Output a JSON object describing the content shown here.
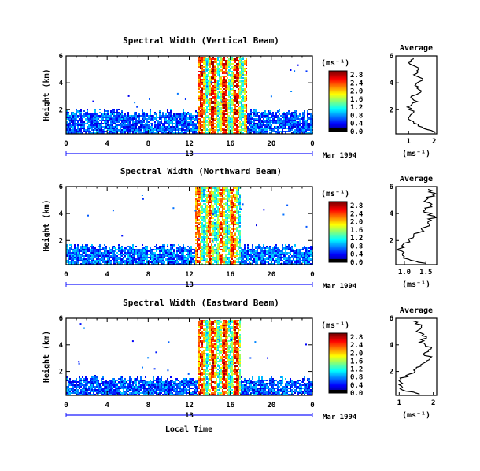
{
  "figure": {
    "xlabel": "Local Time",
    "colorbar_unit": "(ms⁻¹)",
    "date_label": "Mar 1994",
    "day_label": "13"
  },
  "chart_data": [
    {
      "type": "heatmap",
      "title": "Spectral Width (Vertical Beam)",
      "ylabel": "Height (km)",
      "x_ticks": [
        "0",
        "4",
        "8",
        "12",
        "16",
        "20",
        "0"
      ],
      "y_ticks": [
        "2",
        "4",
        "6"
      ],
      "xlim": [
        0,
        24
      ],
      "ylim": [
        0.2,
        6.0
      ],
      "colorbar": {
        "ticks": [
          "0.0",
          "0.4",
          "0.8",
          "1.2",
          "1.6",
          "2.0",
          "2.4",
          "2.8"
        ],
        "range": [
          0.0,
          3.0
        ],
        "colormap": "jet"
      },
      "features": {
        "bg_top_km": 1.9,
        "bg_value": 0.55,
        "convection_start_hr": 12.8,
        "convection_end_hr": 17.5,
        "convection_top_km": 6.0,
        "convection_value": 2.6
      },
      "profile": {
        "title": "Average",
        "xlabel": "(ms⁻¹)",
        "x_ticks": [
          "1",
          "2"
        ],
        "xlim": [
          0.5,
          2.1
        ],
        "y_ticks": [
          "2",
          "4",
          "6"
        ],
        "ylim": [
          0.2,
          6.0
        ],
        "height_km": [
          0.3,
          0.6,
          1.0,
          1.4,
          1.8,
          2.2,
          2.6,
          3.0,
          3.4,
          3.8,
          4.2,
          4.6,
          5.0,
          5.4,
          5.8
        ],
        "value": [
          2.05,
          1.6,
          1.2,
          1.0,
          1.2,
          0.95,
          1.35,
          1.1,
          1.5,
          1.25,
          1.55,
          1.2,
          1.4,
          1.05,
          1.2
        ]
      }
    },
    {
      "type": "heatmap",
      "title": "Spectral Width (Northward Beam)",
      "ylabel": "Height (km)",
      "x_ticks": [
        "0",
        "4",
        "8",
        "12",
        "16",
        "20",
        "0"
      ],
      "y_ticks": [
        "2",
        "4",
        "6"
      ],
      "xlim": [
        0,
        24
      ],
      "ylim": [
        0.2,
        6.0
      ],
      "colorbar": {
        "ticks": [
          "0.0",
          "0.4",
          "0.8",
          "1.2",
          "1.6",
          "2.0",
          "2.4",
          "2.8"
        ],
        "range": [
          0.0,
          3.0
        ],
        "colormap": "jet"
      },
      "features": {
        "bg_top_km": 1.6,
        "bg_value": 0.6,
        "convection_start_hr": 12.5,
        "convection_end_hr": 17.0,
        "convection_top_km": 6.0,
        "convection_value": 2.4
      },
      "profile": {
        "title": "Average",
        "xlabel": "(ms⁻¹)",
        "x_ticks": [
          "1.0",
          "1.5"
        ],
        "xlim": [
          0.8,
          1.75
        ],
        "y_ticks": [
          "2",
          "4",
          "6"
        ],
        "ylim": [
          0.2,
          6.0
        ],
        "height_km": [
          0.3,
          0.6,
          1.0,
          1.4,
          1.8,
          2.2,
          2.6,
          3.0,
          3.4,
          3.8,
          4.2,
          4.6,
          5.0,
          5.4,
          5.8
        ],
        "value": [
          1.5,
          1.1,
          0.95,
          0.9,
          1.0,
          1.2,
          1.35,
          1.5,
          1.55,
          1.7,
          1.45,
          1.6,
          1.5,
          1.65,
          1.55
        ]
      }
    },
    {
      "type": "heatmap",
      "title": "Spectral Width (Eastward Beam)",
      "ylabel": "Height (km)",
      "x_ticks": [
        "0",
        "4",
        "8",
        "12",
        "16",
        "20",
        "0"
      ],
      "y_ticks": [
        "2",
        "4",
        "6"
      ],
      "xlim": [
        0,
        24
      ],
      "ylim": [
        0.2,
        6.0
      ],
      "colorbar": {
        "ticks": [
          "0.0",
          "0.4",
          "0.8",
          "1.2",
          "1.6",
          "2.0",
          "2.4",
          "2.8"
        ],
        "range": [
          0.0,
          3.0
        ],
        "colormap": "jet"
      },
      "features": {
        "bg_top_km": 1.5,
        "bg_value": 0.55,
        "convection_start_hr": 12.8,
        "convection_end_hr": 17.0,
        "convection_top_km": 6.0,
        "convection_value": 2.5
      },
      "profile": {
        "title": "Average",
        "xlabel": "(ms⁻¹)",
        "x_ticks": [
          "1",
          "2"
        ],
        "xlim": [
          0.9,
          2.1
        ],
        "y_ticks": [
          "2",
          "4",
          "6"
        ],
        "ylim": [
          0.2,
          6.0
        ],
        "height_km": [
          0.3,
          0.6,
          1.0,
          1.4,
          1.8,
          2.2,
          2.6,
          3.0,
          3.4,
          3.8,
          4.2,
          4.6,
          5.0,
          5.4,
          5.8
        ],
        "value": [
          1.6,
          1.1,
          1.0,
          1.05,
          1.3,
          1.5,
          1.7,
          1.9,
          1.75,
          1.95,
          1.6,
          1.8,
          1.5,
          1.65,
          1.4
        ]
      }
    }
  ]
}
